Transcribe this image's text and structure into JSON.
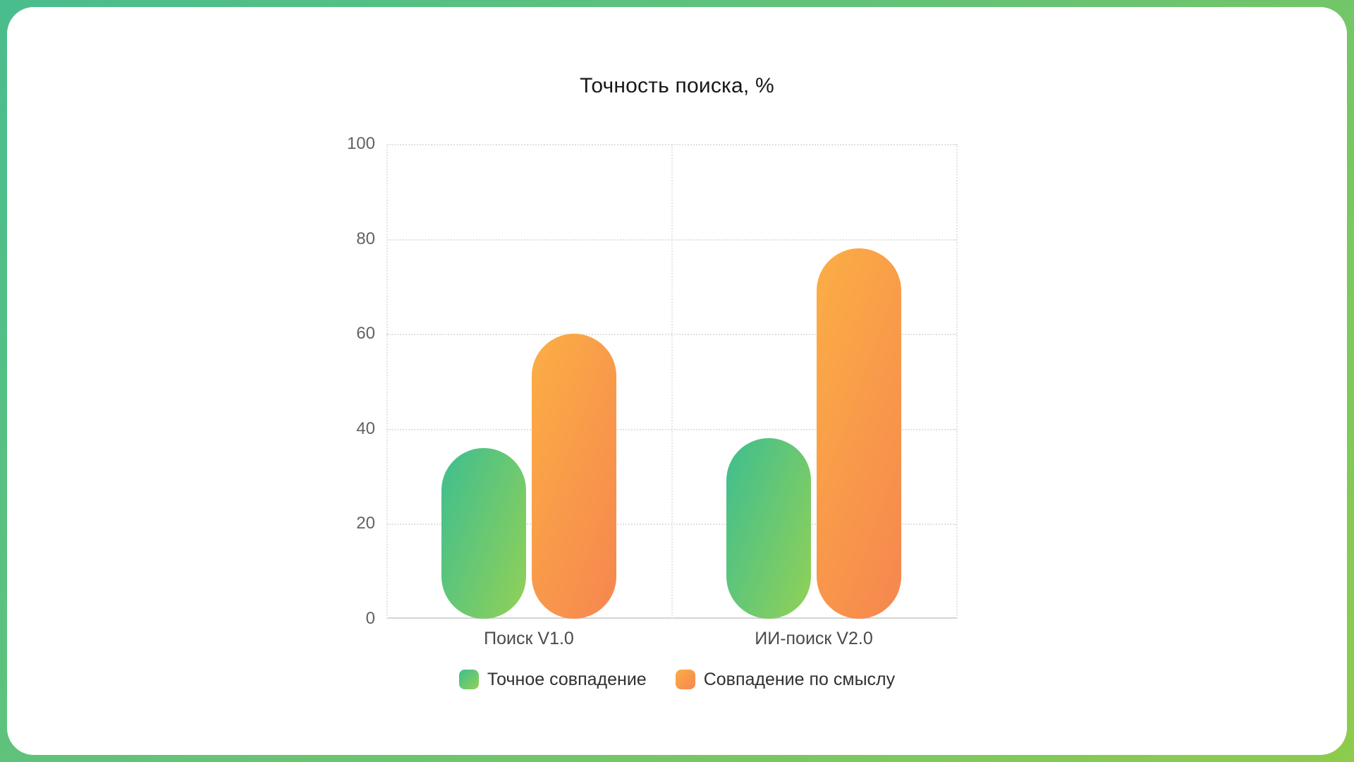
{
  "page": {
    "frame_gradient_start": "#4ABD8E",
    "frame_gradient_end": "#8ECB4D",
    "card_color": "#ffffff"
  },
  "chart_data": {
    "type": "bar",
    "title": "Точность поиска, %",
    "categories": [
      "Поиск V1.0",
      "ИИ-поиск V2.0"
    ],
    "series": [
      {
        "name": "Точное совпадение",
        "values": [
          36,
          38
        ],
        "color_start": "#3EBE90",
        "color_end": "#92D156"
      },
      {
        "name": "Совпадение по смыслу",
        "values": [
          60,
          78
        ],
        "color_start": "#FBAE45",
        "color_end": "#F6864F"
      }
    ],
    "y_ticks": [
      0,
      20,
      40,
      60,
      80,
      100
    ],
    "ylim": [
      0,
      100
    ],
    "xlabel": "",
    "ylabel": "",
    "grid": "horizontal dotted lines at each y tick, vertical dotted lines at category boundaries, solid zero axis",
    "legend_position": "bottom",
    "bar_shape": "pill (fully rounded caps)"
  }
}
